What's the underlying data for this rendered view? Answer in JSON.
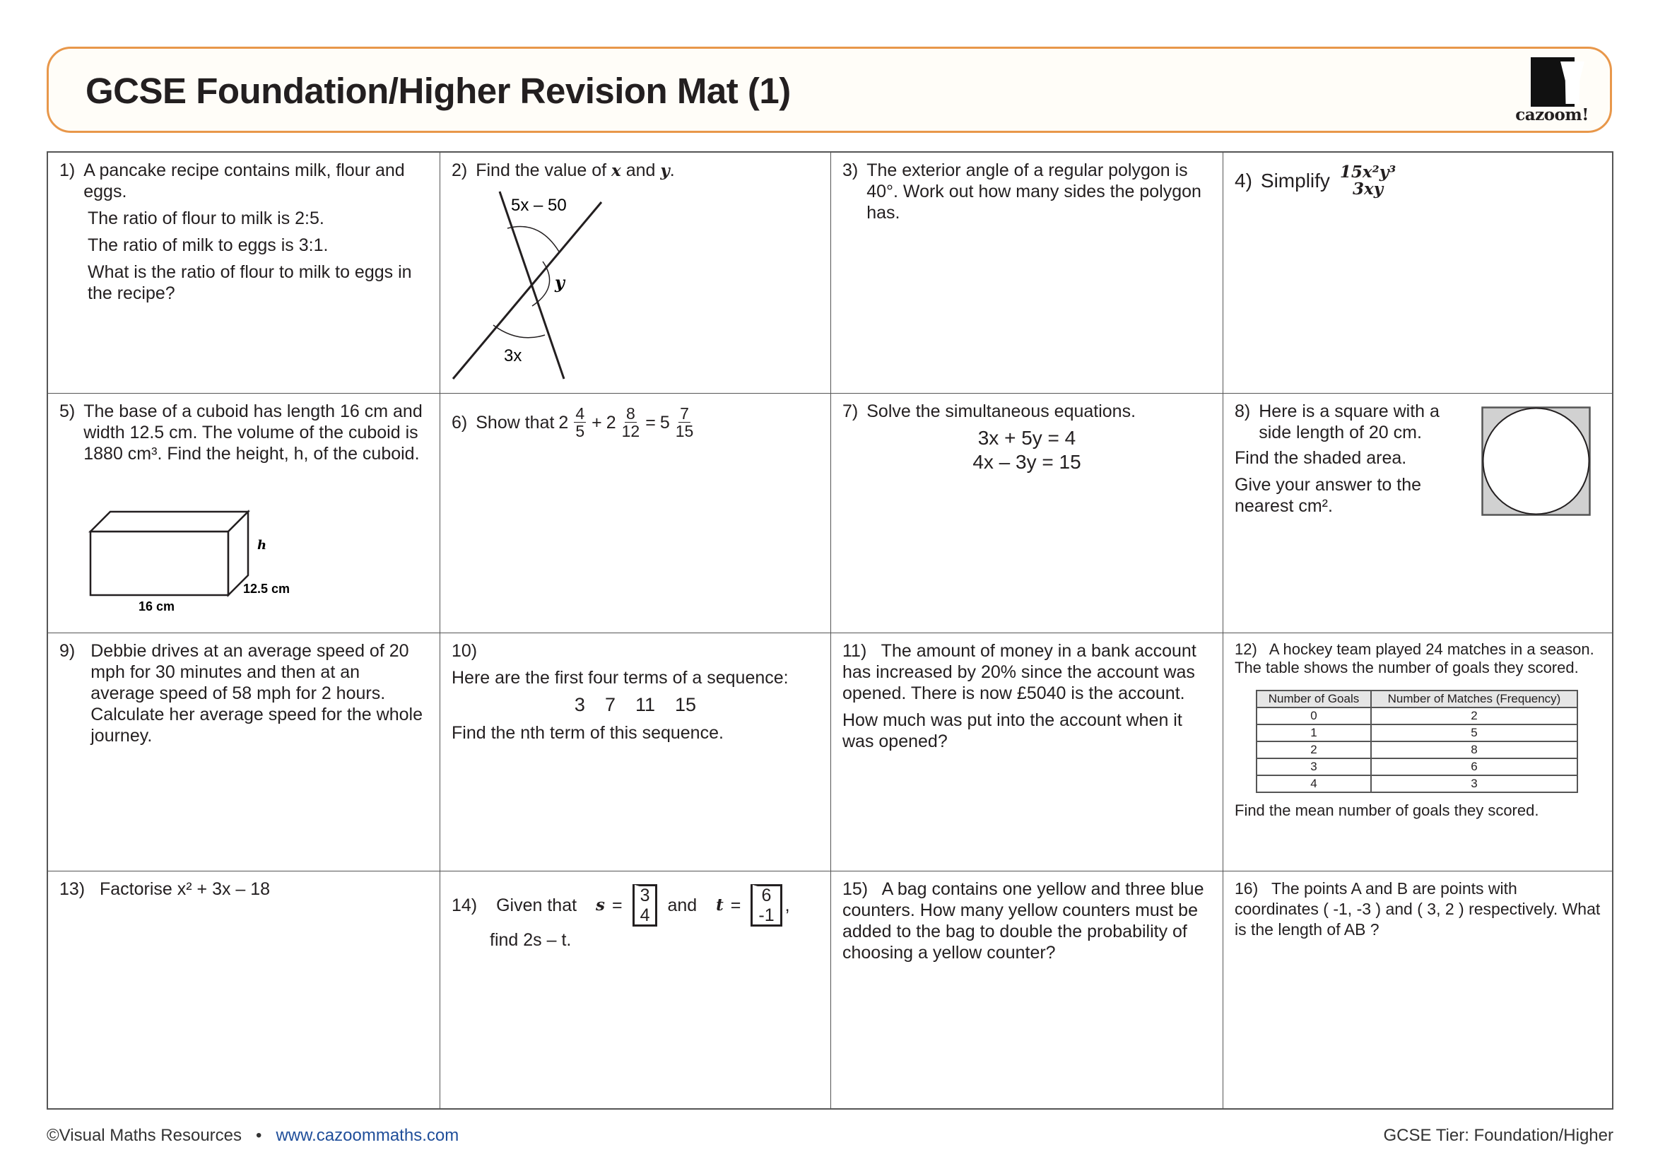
{
  "header": {
    "title": "GCSE Foundation/Higher Revision Mat (1)",
    "logo_text": "cazoom!"
  },
  "accent_color": "#e8974a",
  "questions": {
    "q1": {
      "num": "1)",
      "lines": [
        "A pancake recipe contains milk, flour and eggs.",
        "The ratio of flour to milk is 2:5.",
        "The ratio of milk to eggs is 3:1.",
        "What is the ratio of flour to milk to eggs in the recipe?"
      ]
    },
    "q2": {
      "num": "2)",
      "text_a": "Find the value of ",
      "x": "x",
      "text_b": " and ",
      "y": "y",
      "text_c": ".",
      "labels": {
        "top": "5x – 50",
        "right": "y",
        "bottom": "3x"
      }
    },
    "q3": {
      "num": "3)",
      "text": "The exterior angle of a regular polygon is 40°. Work out how many sides the polygon has."
    },
    "q4": {
      "num": "4)",
      "text": "Simplify",
      "numerator": "15x²y³",
      "denominator": "3xy"
    },
    "q5": {
      "num": "5)",
      "text": "The base of a cuboid has length 16 cm and width 12.5 cm. The volume of the cuboid is 1880 cm³. Find the height, h, of the cuboid.",
      "labels": {
        "h": "h",
        "width": "12.5  cm",
        "length": "16 cm"
      }
    },
    "q6": {
      "num": "6)",
      "text": "Show that",
      "a_whole": "2",
      "a_num": "4",
      "a_den": "5",
      "plus": "+",
      "b_whole": "2",
      "b_num": "8",
      "b_den": "12",
      "eq": "=",
      "c_whole": "5",
      "c_num": "7",
      "c_den": "15"
    },
    "q7": {
      "num": "7)",
      "text": "Solve the simultaneous equations.",
      "eq1": "3x + 5y = 4",
      "eq2": "4x – 3y = 15"
    },
    "q8": {
      "num": "8)",
      "lines": [
        "Here is a square with a side length of 20 cm.",
        "Find the shaded area.",
        "Give your answer to the nearest cm²."
      ]
    },
    "q9": {
      "num": "9)",
      "text": "Debbie drives at an average speed of 20 mph for 30 minutes and then at an average speed of 58 mph for 2 hours. Calculate her average speed for the whole journey."
    },
    "q10": {
      "num": "10)",
      "text": "Here are the first four terms of a sequence:",
      "terms": [
        "3",
        "7",
        "11",
        "15"
      ],
      "text2": "Find the nth term of this sequence."
    },
    "q11": {
      "num": "11)",
      "text": "The amount of money in a bank account has increased by 20% since the account was opened. There is now £5040 is the account.",
      "text2": "How much was put into the account when it was opened?"
    },
    "q12": {
      "num": "12)",
      "text": "A hockey team played 24 matches in a season. The table shows the number of goals they scored.",
      "headers": [
        "Number of Goals",
        "Number of Matches (Frequency)"
      ],
      "rows": [
        [
          "0",
          "2"
        ],
        [
          "1",
          "5"
        ],
        [
          "2",
          "8"
        ],
        [
          "3",
          "6"
        ],
        [
          "4",
          "3"
        ]
      ],
      "text2": "Find the mean number of goals they scored."
    },
    "q13": {
      "num": "13)",
      "text": "Factorise",
      "expr": "x² + 3x – 18"
    },
    "q14": {
      "num": "14)",
      "text_a": "Given that",
      "s": "s",
      "eq": "=",
      "s_vec": [
        "3",
        "4"
      ],
      "and": "and",
      "t": "t",
      "t_vec": [
        "6",
        "-1"
      ],
      "comma": ",",
      "text_b": "find 2s – t."
    },
    "q15": {
      "num": "15)",
      "text": "A bag contains one yellow and three blue counters. How many yellow counters must be added to the bag to double the probability of choosing a yellow counter?"
    },
    "q16": {
      "num": "16)",
      "text": "The points A and B are points with coordinates ( -1, -3 ) and ( 3, 2 ) respectively. What is the length of AB ?"
    }
  },
  "footer": {
    "copyright": "©Visual Maths Resources",
    "bullet": "•",
    "link": "www.cazoommaths.com",
    "tier": "GCSE Tier: Foundation/Higher"
  }
}
